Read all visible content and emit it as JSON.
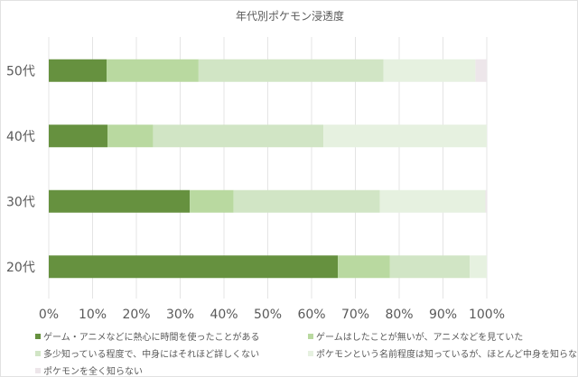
{
  "chart_data": {
    "type": "bar",
    "orientation": "horizontal",
    "stacked": "percent",
    "title": "年代別ポケモン浸透度",
    "categories": [
      "50代",
      "40代",
      "30代",
      "20代"
    ],
    "xlim": [
      0,
      100
    ],
    "xticks": [
      "0%",
      "10%",
      "20%",
      "30%",
      "40%",
      "50%",
      "60%",
      "70%",
      "80%",
      "90%",
      "100%"
    ],
    "grid": "vertical",
    "legend_position": "bottom",
    "series": [
      {
        "name": "ゲーム・アニメなどに熱心に時間を使ったことがある",
        "color": "#66913f",
        "values": [
          13.2,
          13.4,
          32.2,
          66.0
        ]
      },
      {
        "name": "ゲームはしたことが無いが、アニメなどを見ていた",
        "color": "#b9d9a0",
        "values": [
          21.0,
          10.4,
          10.0,
          11.9
        ]
      },
      {
        "name": "多少知っている程度で、中身にはそれほど詳しくない",
        "color": "#d1e5c5",
        "values": [
          42.2,
          38.9,
          33.4,
          18.2
        ]
      },
      {
        "name": "ポケモンという名前程度は知っているが、ほとんど中身を知らない",
        "color": "#e6f1e0",
        "values": [
          21.0,
          37.3,
          24.1,
          3.9
        ]
      },
      {
        "name": "ポケモンを全く知らない",
        "color": "#ede6ea",
        "values": [
          2.6,
          0.0,
          0.3,
          0.0
        ]
      }
    ]
  }
}
